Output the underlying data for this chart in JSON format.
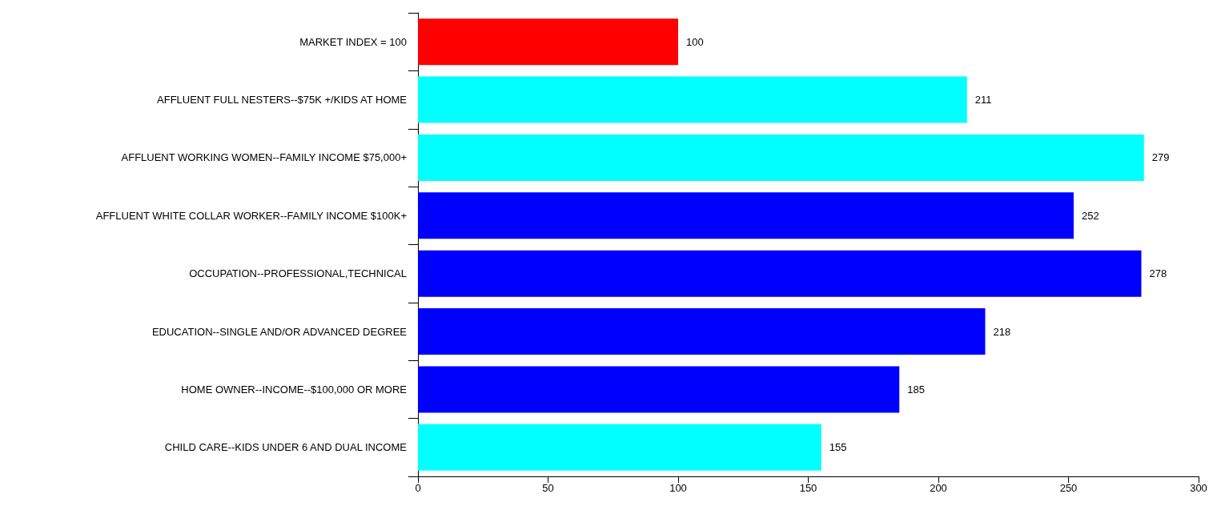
{
  "chart_data": {
    "type": "bar",
    "orientation": "horizontal",
    "categories": [
      "MARKET INDEX = 100",
      "AFFLUENT FULL NESTERS--$75K +/KIDS AT HOME",
      "AFFLUENT WORKING WOMEN--FAMILY INCOME $75,000+",
      "AFFLUENT WHITE COLLAR WORKER--FAMILY INCOME $100K+",
      "OCCUPATION--PROFESSIONAL,TECHNICAL",
      "EDUCATION--SINGLE AND/OR ADVANCED DEGREE",
      "HOME OWNER--INCOME--$100,000 OR MORE",
      "CHILD CARE--KIDS UNDER 6 AND DUAL INCOME"
    ],
    "values": [
      100,
      211,
      279,
      252,
      278,
      218,
      185,
      155
    ],
    "colors": [
      "#ff0000",
      "#00ffff",
      "#00ffff",
      "#0000ff",
      "#0000ff",
      "#0000ff",
      "#0000ff",
      "#00ffff"
    ],
    "xlim": [
      0,
      300
    ],
    "xticks": [
      0,
      50,
      100,
      150,
      200,
      250,
      300
    ],
    "data_labels": true,
    "grid": false
  }
}
